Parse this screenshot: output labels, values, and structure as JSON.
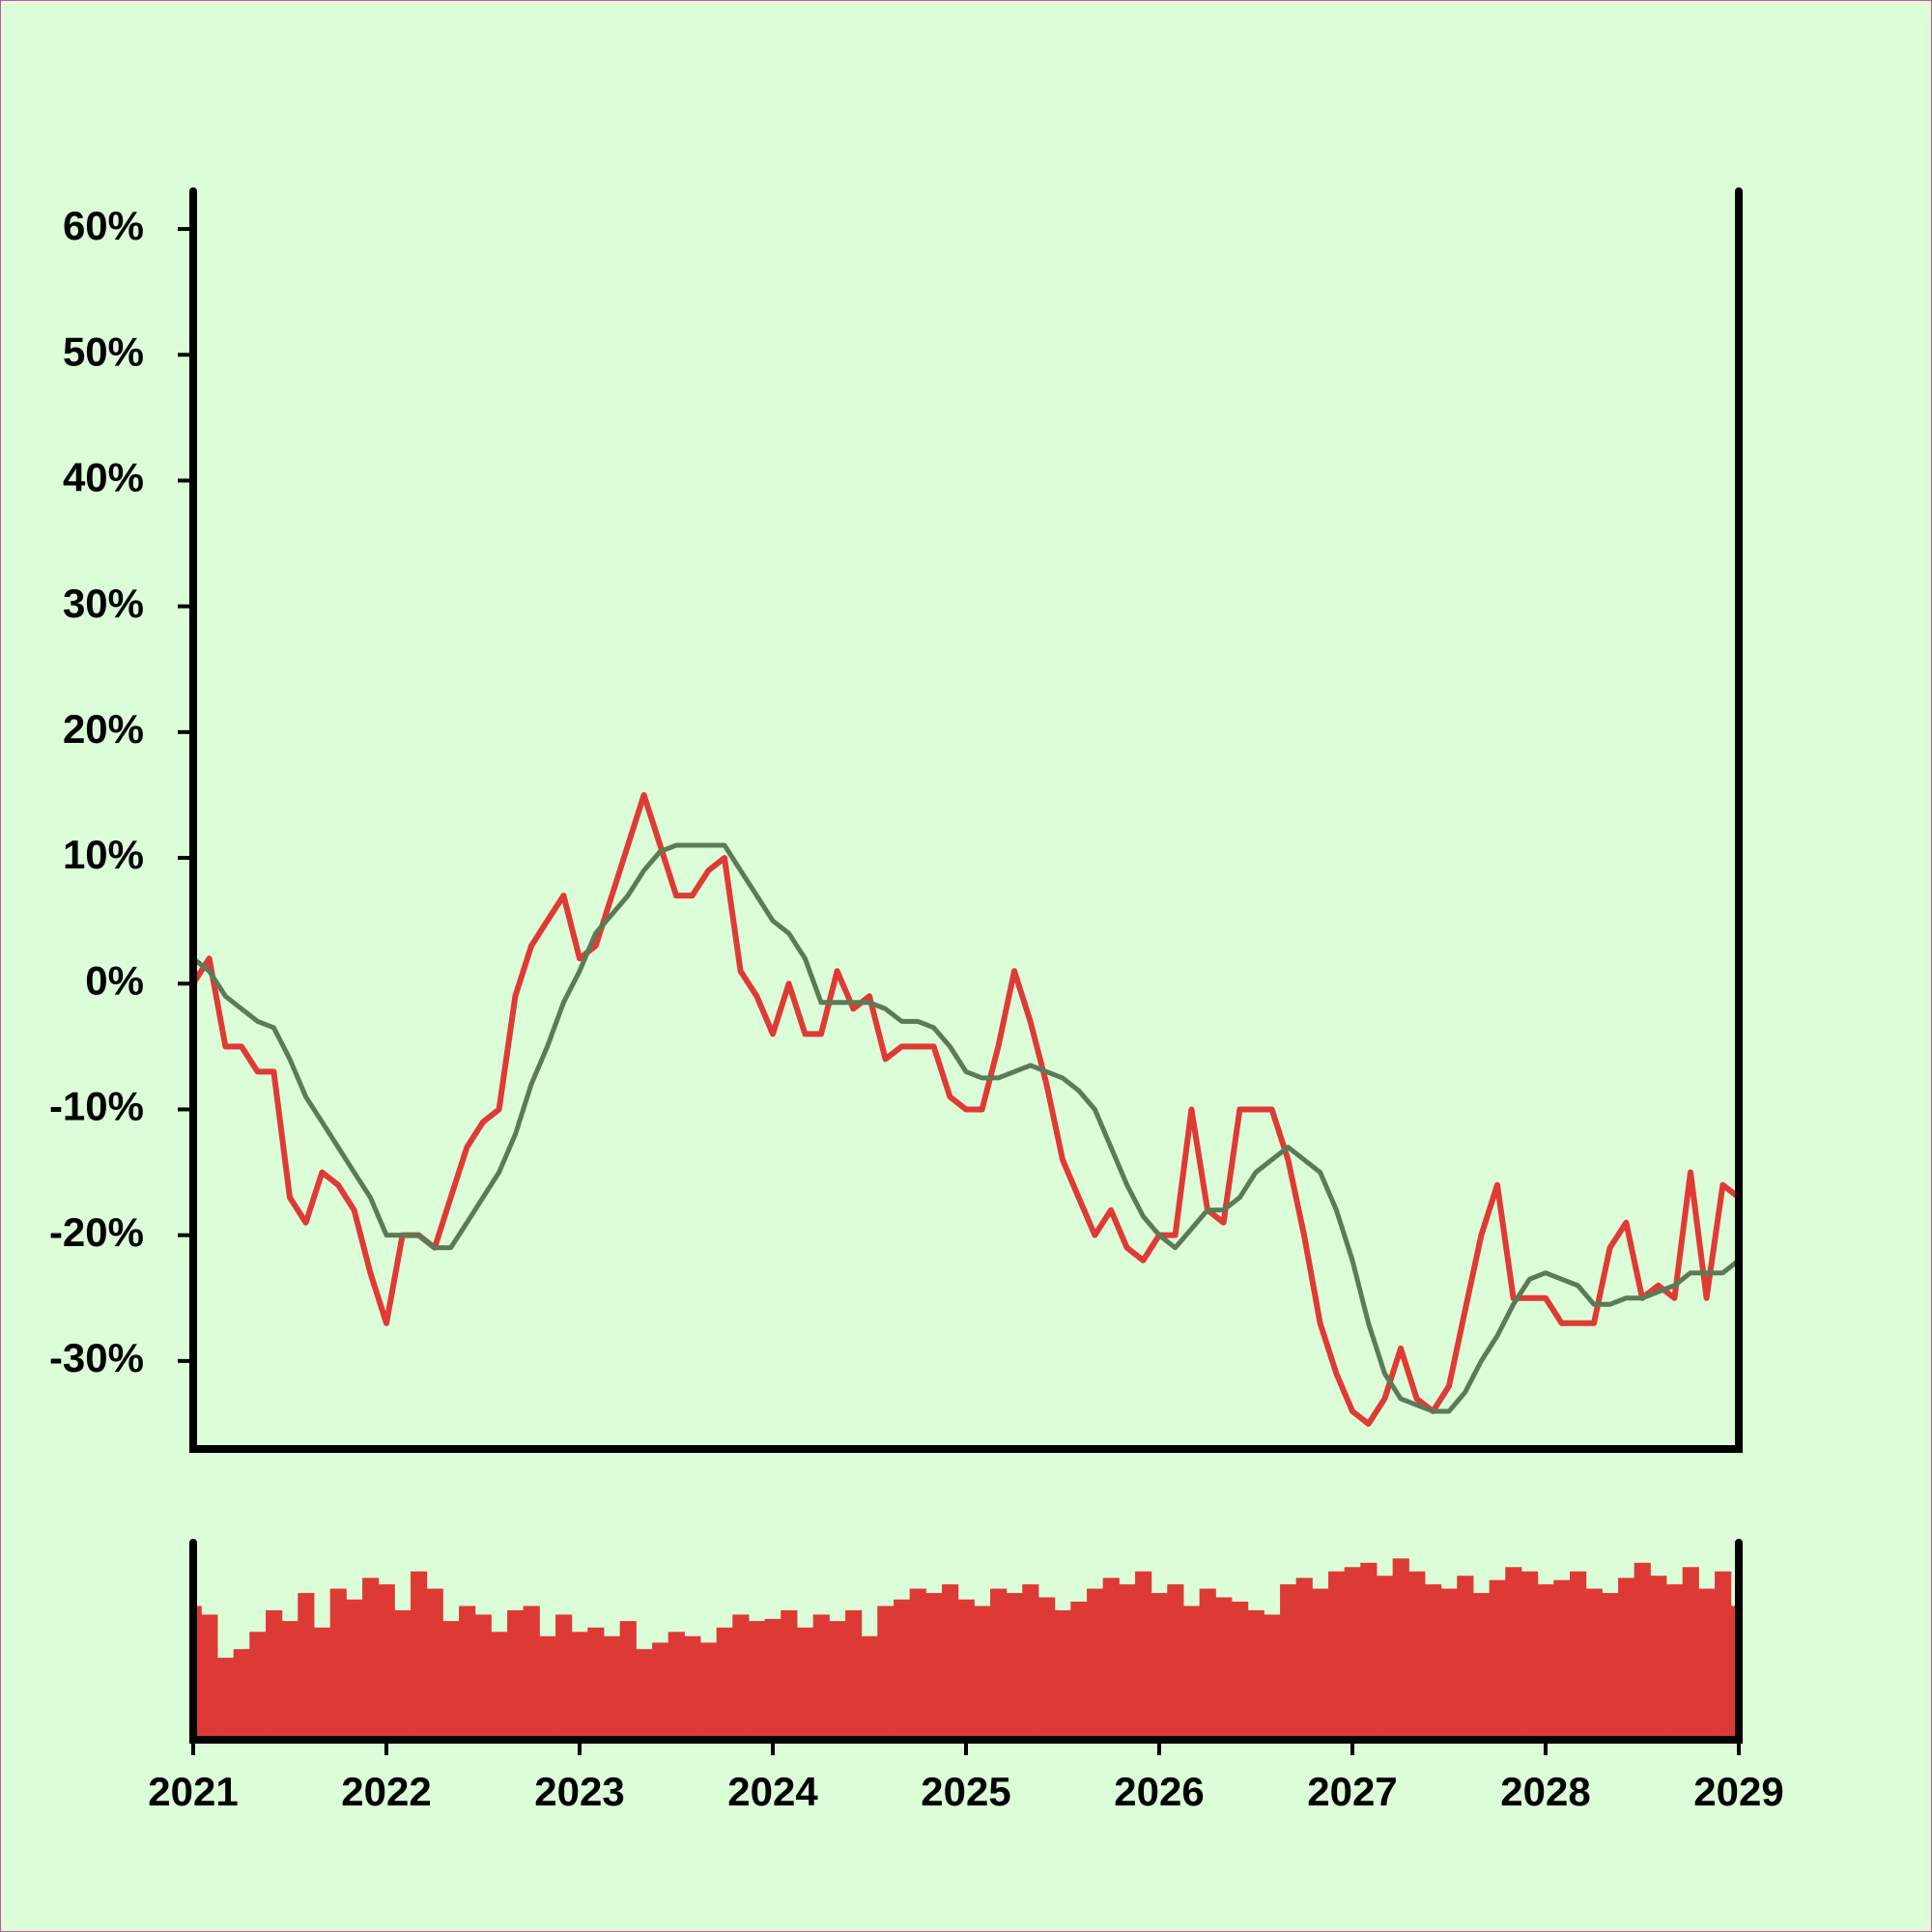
{
  "chart_data": {
    "type": "line",
    "x": [
      2021,
      2021.083,
      2021.167,
      2021.25,
      2021.333,
      2021.417,
      2021.5,
      2021.583,
      2021.667,
      2021.75,
      2021.833,
      2021.917,
      2022,
      2022.083,
      2022.167,
      2022.25,
      2022.333,
      2022.417,
      2022.5,
      2022.583,
      2022.667,
      2022.75,
      2022.833,
      2022.917,
      2023,
      2023.083,
      2023.167,
      2023.25,
      2023.333,
      2023.417,
      2023.5,
      2023.583,
      2023.667,
      2023.75,
      2023.833,
      2023.917,
      2024,
      2024.083,
      2024.167,
      2024.25,
      2024.333,
      2024.417,
      2024.5,
      2024.583,
      2024.667,
      2024.75,
      2024.833,
      2024.917,
      2025,
      2025.083,
      2025.167,
      2025.25,
      2025.333,
      2025.417,
      2025.5,
      2025.583,
      2025.667,
      2025.75,
      2025.833,
      2025.917,
      2026,
      2026.083,
      2026.167,
      2026.25,
      2026.333,
      2026.417,
      2026.5,
      2026.583,
      2026.667,
      2026.75,
      2026.833,
      2026.917,
      2027,
      2027.083,
      2027.167,
      2027.25,
      2027.333,
      2027.417,
      2027.5,
      2027.583,
      2027.667,
      2027.75,
      2027.833,
      2027.917,
      2028,
      2028.083,
      2028.167,
      2028.25,
      2028.333,
      2028.417,
      2028.5,
      2028.583,
      2028.667,
      2028.75,
      2028.833,
      2028.917,
      2029
    ],
    "series": [
      {
        "color": "#e03a36",
        "values": [
          0,
          2,
          -5,
          -5,
          -7,
          -7,
          -17,
          -19,
          -15,
          -16,
          -18,
          -23,
          -27,
          -20,
          -20,
          -21,
          -17,
          -13,
          -11,
          -10,
          -1,
          3,
          5,
          7,
          2,
          3,
          7,
          11,
          15,
          11,
          7,
          7,
          9,
          10,
          1,
          -1,
          -4,
          0,
          -4,
          -4,
          1,
          -2,
          -1,
          -6,
          -5,
          -5,
          -5,
          -9,
          -10,
          -10,
          -5,
          1,
          -3,
          -8,
          -14,
          -17,
          -20,
          -18,
          -21,
          -22,
          -20,
          -20,
          -10,
          -18,
          -19,
          -10,
          -10,
          -10,
          -14,
          -20,
          -27,
          -31,
          -34,
          -35,
          -33,
          -29,
          -33,
          -34,
          -32,
          -26,
          -20,
          -16,
          -25,
          -25,
          -25,
          -27,
          -27,
          -27,
          -21,
          -19,
          -25,
          -24,
          -25,
          -15,
          -25,
          -16,
          -17
        ]
      },
      {
        "color": "#5b7a55",
        "values": [
          2,
          1,
          -1,
          -2,
          -3,
          -3.5,
          -6,
          -9,
          -11,
          -13,
          -15,
          -17,
          -20,
          -20,
          -20,
          -21,
          -21,
          -19,
          -17,
          -15,
          -12,
          -8,
          -5,
          -1.5,
          1,
          4,
          5.5,
          7,
          9,
          10.5,
          11,
          11,
          11,
          11,
          9,
          7,
          5,
          4,
          2,
          -1.5,
          -1.5,
          -1.5,
          -1.5,
          -2,
          -3,
          -3,
          -3.5,
          -5,
          -7,
          -7.5,
          -7.5,
          -7,
          -6.5,
          -7,
          -7.5,
          -8.5,
          -10,
          -13,
          -16,
          -18.5,
          -20,
          -21,
          -19.5,
          -18,
          -18,
          -17,
          -15,
          -14,
          -13,
          -14,
          -15,
          -18,
          -22,
          -27,
          -31,
          -33,
          -33.5,
          -34,
          -34,
          -32.5,
          -30,
          -28,
          -25.5,
          -23.5,
          -23,
          -23.5,
          -24,
          -25.5,
          -25.5,
          -25,
          -25,
          -24.5,
          -24,
          -23,
          -23,
          -23,
          -22
        ]
      }
    ],
    "volume": {
      "color": "#dd3a35",
      "values": [
        62,
        58,
        38,
        42,
        50,
        60,
        55,
        68,
        52,
        70,
        65,
        75,
        72,
        60,
        78,
        70,
        55,
        62,
        58,
        50,
        60,
        62,
        48,
        58,
        50,
        52,
        48,
        55,
        42,
        45,
        50,
        48,
        45,
        52,
        58,
        55,
        56,
        60,
        52,
        58,
        55,
        60,
        48,
        62,
        65,
        70,
        68,
        72,
        65,
        62,
        70,
        68,
        72,
        66,
        60,
        64,
        70,
        75,
        72,
        78,
        68,
        72,
        62,
        70,
        66,
        64,
        60,
        58,
        72,
        75,
        70,
        78,
        80,
        82,
        76,
        84,
        78,
        72,
        70,
        76,
        68,
        74,
        80,
        78,
        72,
        74,
        78,
        70,
        68,
        75,
        82,
        76,
        72,
        80,
        70,
        78,
        62
      ]
    },
    "xlim": [
      2021,
      2029
    ],
    "xticks": [
      2021,
      2022,
      2023,
      2024,
      2025,
      2026,
      2027,
      2028,
      2029
    ],
    "ylim": [
      -37,
      63
    ],
    "yticks": [
      {
        "value": -30,
        "label": "-30%"
      },
      {
        "value": -20,
        "label": "-20%"
      },
      {
        "value": -10,
        "label": "-10%"
      },
      {
        "value": 0,
        "label": "0%"
      },
      {
        "value": 10,
        "label": "10%"
      },
      {
        "value": 20,
        "label": "20%"
      },
      {
        "value": 30,
        "label": "30%"
      },
      {
        "value": 40,
        "label": "40%"
      },
      {
        "value": 50,
        "label": "50%"
      },
      {
        "value": 60,
        "label": "60%"
      }
    ]
  }
}
